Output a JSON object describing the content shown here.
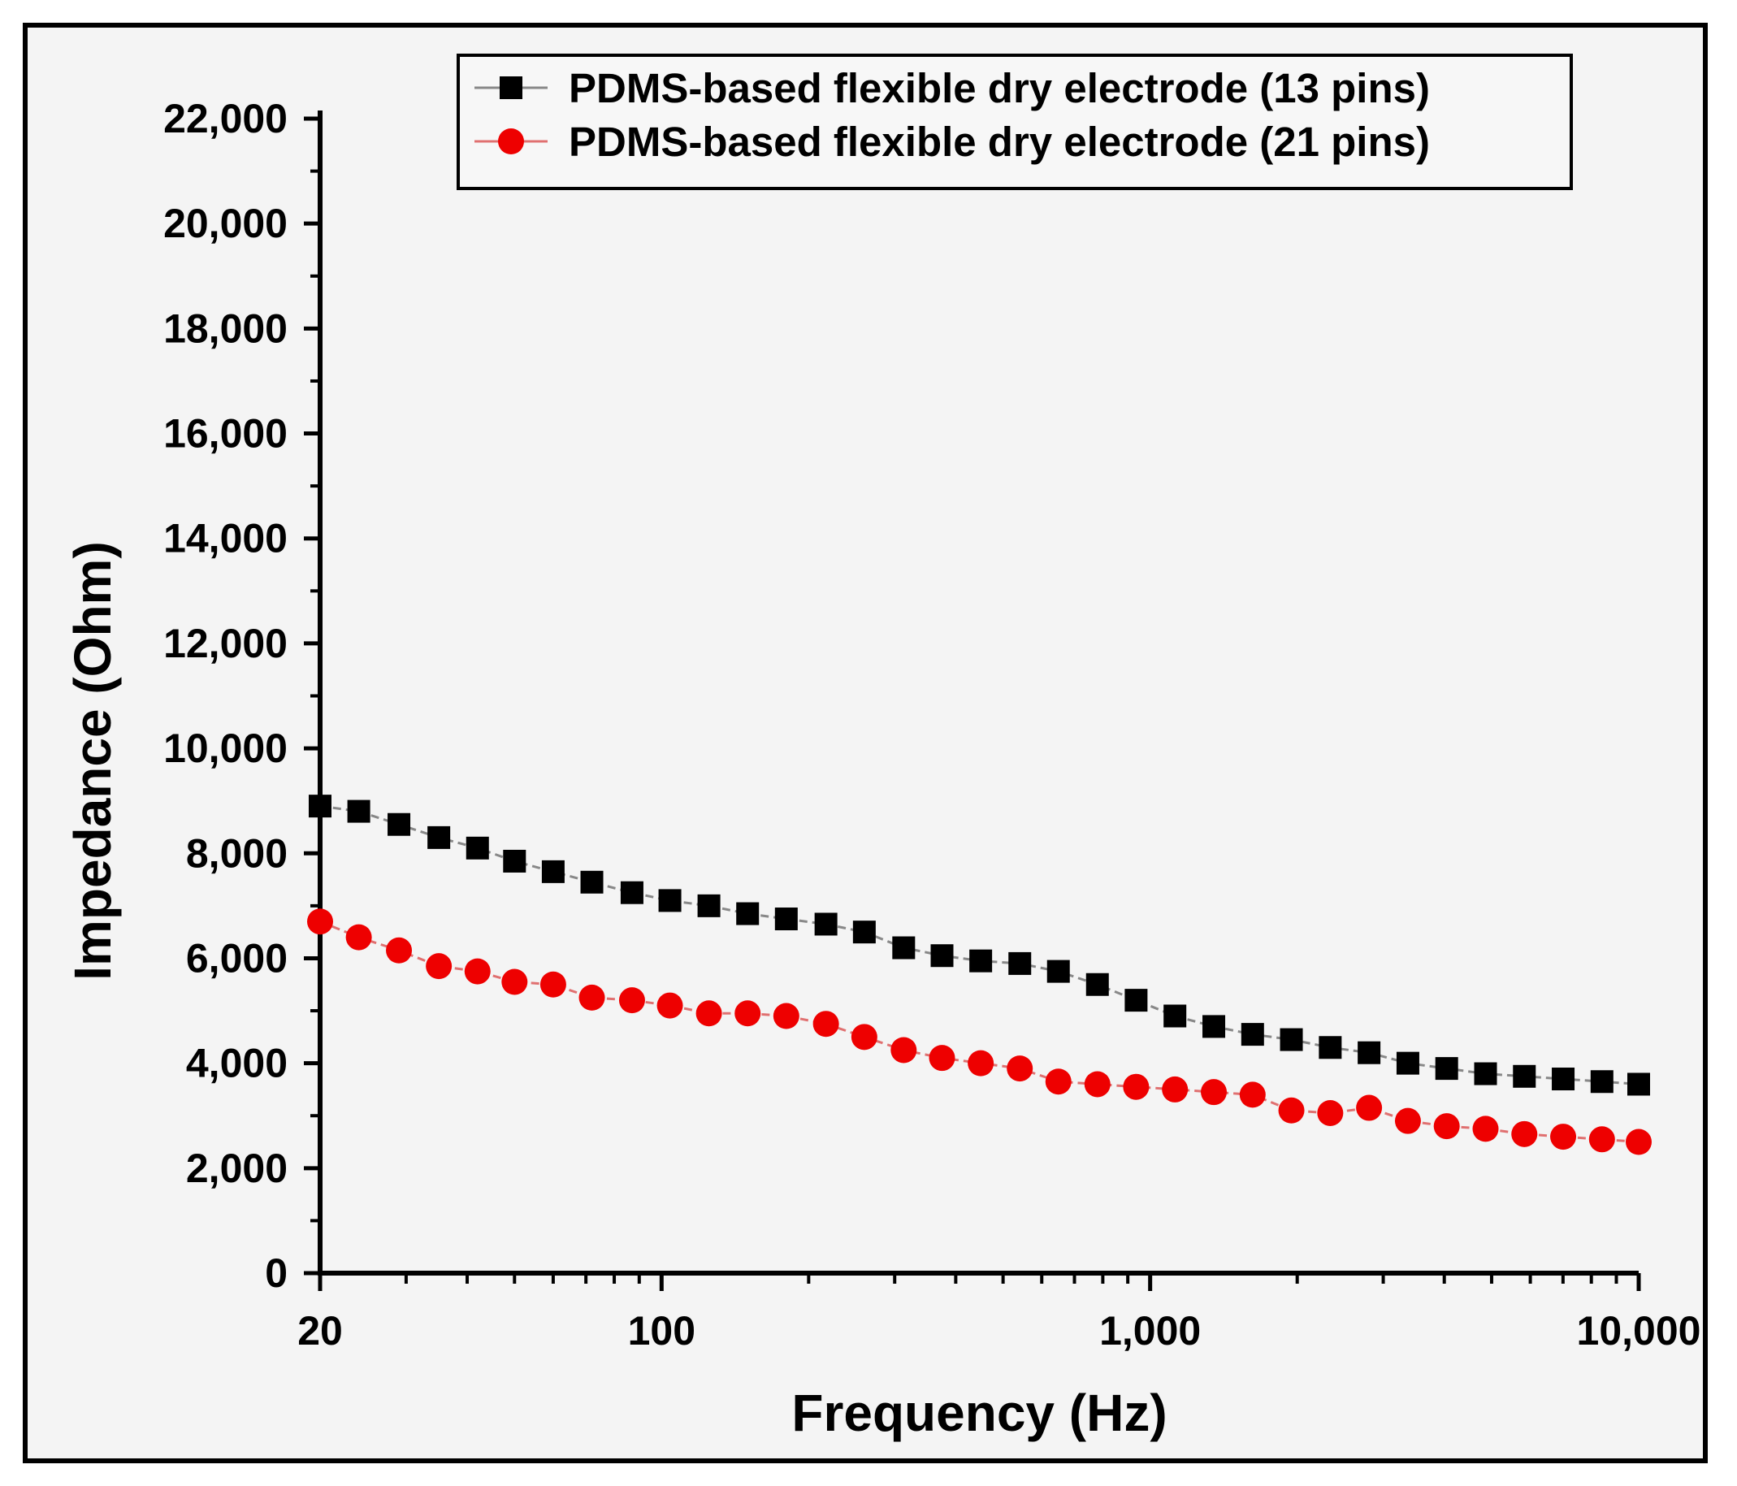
{
  "chart_data": {
    "type": "line",
    "xscale": "log",
    "xlabel": "Frequency (Hz)",
    "ylabel": "Impedance (Ohm)",
    "xlim": [
      20,
      10000
    ],
    "ylim": [
      0,
      22000
    ],
    "x_ticks": [
      {
        "value": 20,
        "label": "20"
      },
      {
        "value": 100,
        "label": "100"
      },
      {
        "value": 1000,
        "label": "1,000"
      },
      {
        "value": 10000,
        "label": "10,000"
      }
    ],
    "y_ticks": [
      {
        "value": 0,
        "label": "0"
      },
      {
        "value": 2000,
        "label": "2,000"
      },
      {
        "value": 4000,
        "label": "4,000"
      },
      {
        "value": 6000,
        "label": "6,000"
      },
      {
        "value": 8000,
        "label": "8,000"
      },
      {
        "value": 10000,
        "label": "10,000"
      },
      {
        "value": 12000,
        "label": "12,000"
      },
      {
        "value": 14000,
        "label": "14,000"
      },
      {
        "value": 16000,
        "label": "16,000"
      },
      {
        "value": 18000,
        "label": "18,000"
      },
      {
        "value": 20000,
        "label": "20,000"
      },
      {
        "value": 22000,
        "label": "22,000"
      }
    ],
    "grid": false,
    "legend_position": "top-right",
    "series": [
      {
        "name": "PDMS-based flexible dry electrode (13 pins)",
        "marker": "square",
        "color": "#000000",
        "line_color": "#888888",
        "x": [
          20,
          24,
          29,
          35,
          42,
          50,
          60,
          72,
          87,
          104,
          125,
          150,
          180,
          217,
          260,
          313,
          375,
          450,
          541,
          649,
          780,
          936,
          1124,
          1350,
          1621,
          1946,
          2337,
          2806,
          3370,
          4046,
          4859,
          5834,
          7005,
          8411,
          10000
        ],
        "y": [
          8900,
          8800,
          8550,
          8300,
          8100,
          7850,
          7650,
          7450,
          7250,
          7100,
          7000,
          6850,
          6750,
          6650,
          6500,
          6200,
          6050,
          5950,
          5900,
          5750,
          5500,
          5200,
          4900,
          4700,
          4550,
          4450,
          4300,
          4200,
          4000,
          3900,
          3800,
          3750,
          3700,
          3650,
          3600
        ]
      },
      {
        "name": "PDMS-based flexible dry electrode (21 pins)",
        "marker": "circle",
        "color": "#ee0000",
        "line_color": "#e07070",
        "x": [
          20,
          24,
          29,
          35,
          42,
          50,
          60,
          72,
          87,
          104,
          125,
          150,
          180,
          217,
          260,
          313,
          375,
          450,
          541,
          649,
          780,
          936,
          1124,
          1350,
          1621,
          1946,
          2337,
          2806,
          3370,
          4046,
          4859,
          5834,
          7005,
          8411,
          10000
        ],
        "y": [
          6700,
          6400,
          6150,
          5850,
          5750,
          5550,
          5500,
          5250,
          5200,
          5100,
          4950,
          4950,
          4900,
          4750,
          4500,
          4250,
          4100,
          4000,
          3900,
          3650,
          3600,
          3550,
          3500,
          3450,
          3400,
          3100,
          3050,
          3150,
          2900,
          2800,
          2750,
          2650,
          2600,
          2550,
          2500
        ]
      }
    ]
  }
}
